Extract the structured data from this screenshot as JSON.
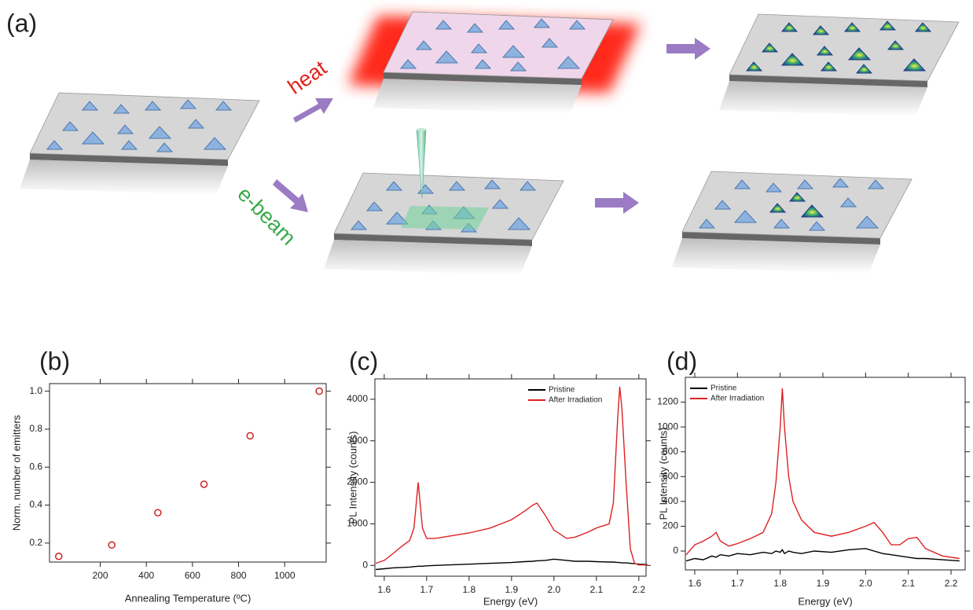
{
  "diagram": {
    "label": "(a)",
    "heat_label": "heat",
    "ebeam_label": "e-beam"
  },
  "chart_data": [
    {
      "type": "scatter",
      "title": "(b)",
      "xlabel": "Annealing Temperature (ºC)",
      "ylabel": "Norm. number of emitters",
      "x": [
        20,
        250,
        450,
        650,
        850,
        1150
      ],
      "values": [
        0.13,
        0.19,
        0.36,
        0.51,
        0.765,
        1.0
      ],
      "color": "#cc2222",
      "xlim": [
        -20,
        1180
      ],
      "xticks": [
        200,
        400,
        600,
        800,
        1000
      ],
      "ylim": [
        0.1,
        1.04
      ],
      "yticks": [
        0.2,
        0.4,
        0.6,
        0.8,
        {
          "value": 1,
          "label": "1.0"
        }
      ]
    },
    {
      "type": "line",
      "title": "(c)",
      "xlabel": "Energy (eV)",
      "ylabel": "PL Intensity (counts)",
      "legend": "upper right",
      "x": [
        1.58,
        1.6,
        1.62,
        1.64,
        1.66,
        1.67,
        1.68,
        1.69,
        1.7,
        1.72,
        1.75,
        1.8,
        1.85,
        1.9,
        1.93,
        1.95,
        1.96,
        1.98,
        2.0,
        2.03,
        2.05,
        2.08,
        2.1,
        2.13,
        2.14,
        2.15,
        2.155,
        2.16,
        2.17,
        2.18,
        2.19,
        2.2,
        2.22
      ],
      "series": [
        {
          "name": "Pristine",
          "color": "#000000",
          "values": [
            -100,
            -80,
            -60,
            -50,
            -40,
            -30,
            -20,
            -20,
            -10,
            0,
            10,
            30,
            50,
            70,
            90,
            100,
            110,
            120,
            150,
            120,
            100,
            100,
            90,
            80,
            80,
            70,
            70,
            60,
            60,
            50,
            40,
            30,
            20
          ]
        },
        {
          "name": "After Irradiation",
          "color": "#dd2222",
          "values": [
            50,
            120,
            280,
            450,
            600,
            900,
            2000,
            900,
            650,
            650,
            700,
            780,
            900,
            1100,
            1300,
            1450,
            1500,
            1200,
            850,
            650,
            680,
            800,
            900,
            1000,
            1500,
            3500,
            4300,
            3800,
            2000,
            400,
            50,
            10,
            10
          ]
        }
      ],
      "xlim": [
        1.578,
        2.217
      ],
      "xticks": [
        1.6,
        1.7,
        1.8,
        1.9,
        {
          "value": 2,
          "label": "2.0"
        },
        2.1,
        2.2
      ],
      "ylim": [
        -260,
        4490
      ],
      "yticks": [
        0,
        1000,
        2000,
        3000,
        4000
      ]
    },
    {
      "type": "line",
      "title": "(d)",
      "xlabel": "Energy (eV)",
      "ylabel": "PL Intensity (counts)",
      "legend": "upper left",
      "x": [
        1.58,
        1.6,
        1.62,
        1.64,
        1.65,
        1.66,
        1.68,
        1.7,
        1.73,
        1.76,
        1.78,
        1.79,
        1.8,
        1.805,
        1.81,
        1.82,
        1.83,
        1.85,
        1.88,
        1.92,
        1.96,
        2.0,
        2.02,
        2.04,
        2.06,
        2.08,
        2.1,
        2.12,
        2.14,
        2.18,
        2.22
      ],
      "series": [
        {
          "name": "Pristine",
          "color": "#000000",
          "values": [
            -80,
            -60,
            -70,
            -40,
            -50,
            -30,
            -40,
            -20,
            -30,
            -10,
            -20,
            0,
            -10,
            10,
            -20,
            0,
            -10,
            -20,
            0,
            -10,
            10,
            20,
            0,
            -20,
            -30,
            -40,
            -50,
            -60,
            -60,
            -70,
            -80
          ]
        },
        {
          "name": "After Irradiation",
          "color": "#dd2222",
          "values": [
            -30,
            50,
            80,
            120,
            150,
            80,
            40,
            60,
            100,
            150,
            300,
            550,
            1000,
            1310,
            1000,
            600,
            400,
            250,
            150,
            120,
            150,
            200,
            230,
            150,
            50,
            50,
            100,
            110,
            20,
            -40,
            -60
          ]
        }
      ],
      "xlim": [
        1.578,
        2.233
      ],
      "xticks": [
        1.6,
        1.7,
        1.8,
        1.9,
        {
          "value": 2,
          "label": "2.0"
        },
        2.1,
        2.2
      ],
      "ylim": [
        -152,
        1400
      ],
      "yticks": [
        0,
        200,
        400,
        600,
        800,
        1000,
        1200
      ]
    }
  ]
}
